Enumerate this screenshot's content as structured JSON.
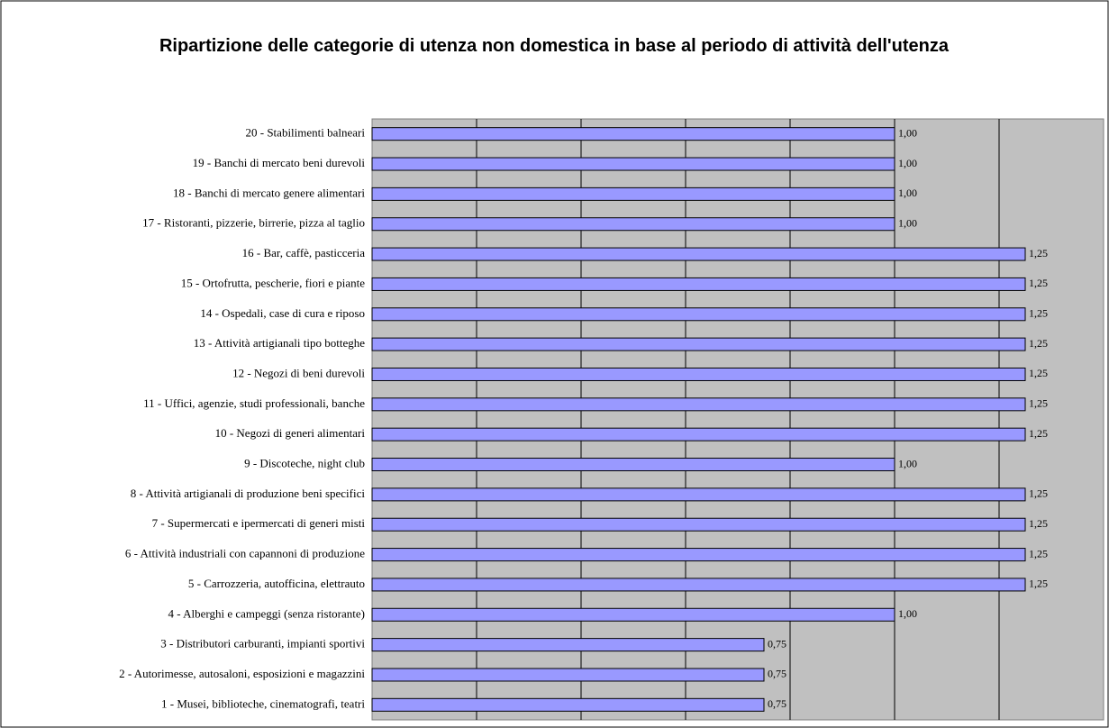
{
  "chart_data": {
    "type": "hbar",
    "title": "Ripartizione delle categorie di utenza non domestica in base al periodo di attività dell'utenza",
    "categories": [
      "1 - Musei, biblioteche, cinematografi, teatri",
      "2 - Autorimesse, autosaloni, esposizioni e magazzini",
      "3 - Distributori carburanti, impianti sportivi",
      "4 - Alberghi e campeggi (senza ristorante)",
      "5 - Carrozzeria, autofficina, elettrauto",
      "6 - Attività industriali con capannoni di produzione",
      "7 - Supermercati e ipermercati di generi misti",
      "8 - Attività artigianali di produzione beni specifici",
      "9 - Discoteche, night club",
      "10 - Negozi di generi alimentari",
      "11 - Uffici, agenzie, studi professionali, banche",
      "12 - Negozi di beni durevoli",
      "13 - Attività artigianali tipo botteghe",
      "14 - Ospedali, case di cura e riposo",
      "15 - Ortofrutta, pescherie, fiori e piante",
      "16 - Bar, caffè, pasticceria",
      "17 - Ristoranti, pizzerie, birrerie, pizza al taglio",
      "18 - Banchi di mercato genere alimentari",
      "19 - Banchi di mercato beni durevoli",
      "20 - Stabilimenti balneari"
    ],
    "values": [
      0.75,
      0.75,
      0.75,
      1,
      1.25,
      1.25,
      1.25,
      1.25,
      1,
      1.25,
      1.25,
      1.25,
      1.25,
      1.25,
      1.25,
      1.25,
      1,
      1,
      1,
      1
    ],
    "value_labels": [
      "0,75",
      "0,75",
      "0,75",
      "1,00",
      "1,25",
      "1,25",
      "1,25",
      "1,25",
      "1,00",
      "1,25",
      "1,25",
      "1,25",
      "1,25",
      "1,25",
      "1,25",
      "1,25",
      "1,00",
      "1,00",
      "1,00",
      "1,00"
    ],
    "color": "#9999ff",
    "plot_background": "#c0c0c0",
    "xlim": [
      0,
      1.4
    ],
    "xgrid": [
      0.2,
      0.4,
      0.6,
      0.8,
      1,
      1.2
    ],
    "grid": true
  }
}
